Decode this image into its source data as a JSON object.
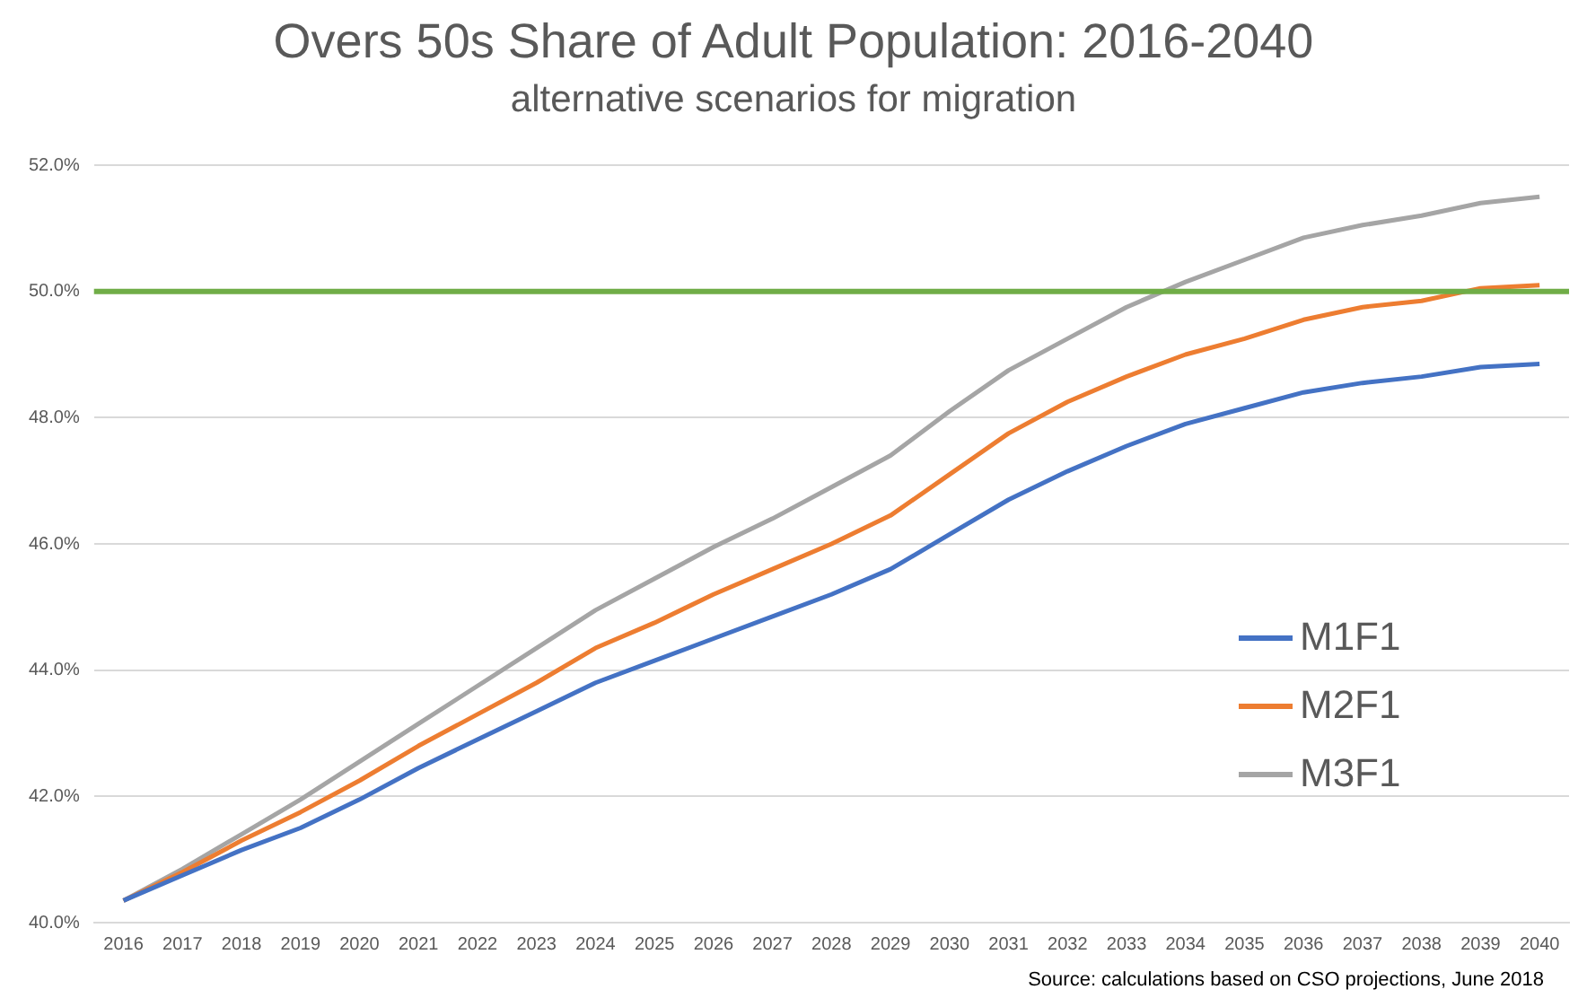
{
  "chart_data": {
    "type": "line",
    "title": "Overs 50s Share of Adult Population: 2016-2040",
    "subtitle": "alternative scenarios for migration",
    "categories": [
      "2016",
      "2017",
      "2018",
      "2019",
      "2020",
      "2021",
      "2022",
      "2023",
      "2024",
      "2025",
      "2026",
      "2027",
      "2028",
      "2029",
      "2030",
      "2031",
      "2032",
      "2033",
      "2034",
      "2035",
      "2036",
      "2037",
      "2038",
      "2039",
      "2040"
    ],
    "series": [
      {
        "name": "M1F1",
        "color": "#4472c4",
        "values": [
          40.35,
          40.75,
          41.15,
          41.5,
          41.95,
          42.45,
          42.9,
          43.35,
          43.8,
          44.15,
          44.5,
          44.85,
          45.2,
          45.6,
          46.15,
          46.7,
          47.15,
          47.55,
          47.9,
          48.15,
          48.4,
          48.55,
          48.65,
          48.8,
          48.85
        ]
      },
      {
        "name": "M2F1",
        "color": "#ed7d31",
        "values": [
          40.35,
          40.8,
          41.3,
          41.75,
          42.25,
          42.8,
          43.3,
          43.8,
          44.35,
          44.75,
          45.2,
          45.6,
          46.0,
          46.45,
          47.1,
          47.75,
          48.25,
          48.65,
          49.0,
          49.25,
          49.55,
          49.75,
          49.85,
          50.05,
          50.1
        ]
      },
      {
        "name": "M3F1",
        "color": "#a5a5a5",
        "values": [
          40.35,
          40.85,
          41.4,
          41.95,
          42.55,
          43.15,
          43.75,
          44.35,
          44.95,
          45.45,
          45.95,
          46.4,
          46.9,
          47.4,
          48.1,
          48.75,
          49.25,
          49.75,
          50.15,
          50.5,
          50.85,
          51.05,
          51.2,
          51.4,
          51.5
        ]
      }
    ],
    "ylim": [
      40,
      52
    ],
    "yticks": [
      {
        "value": 40,
        "label": "40.0%"
      },
      {
        "value": 42,
        "label": "42.0%"
      },
      {
        "value": 44,
        "label": "44.0%"
      },
      {
        "value": 46,
        "label": "46.0%"
      },
      {
        "value": 48,
        "label": "48.0%"
      },
      {
        "value": 50,
        "label": "50.0%"
      },
      {
        "value": 52,
        "label": "52.0%"
      }
    ],
    "ref_lines": [
      {
        "axis": "y",
        "value": 50,
        "color": "#70ad47"
      }
    ],
    "grid": "y",
    "legend": "bottom right",
    "marker": "none",
    "line_style": "solid",
    "annotations": [
      "Source: calculations based on CSO projections, June 2018"
    ]
  }
}
